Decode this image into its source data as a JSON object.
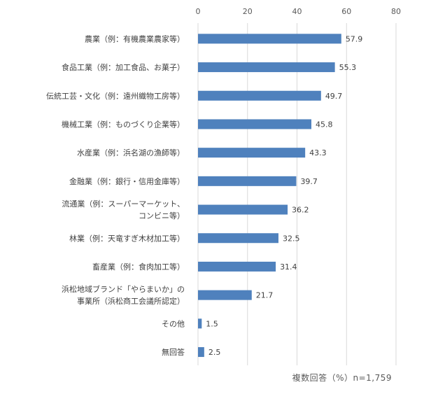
{
  "chart_data": {
    "type": "bar",
    "orientation": "horizontal",
    "categories": [
      [
        "農業（例：有機農業農家等）"
      ],
      [
        "食品工業（例：加工食品、お菓子）"
      ],
      [
        "伝統工芸・文化（例：遠州織物工房等）"
      ],
      [
        "機械工業（例：ものづくり企業等）"
      ],
      [
        "水産業（例：浜名湖の漁師等）"
      ],
      [
        "金融業（例：銀行・信用金庫等）"
      ],
      [
        "流通業（例：スーパーマーケット、",
        "コンビニ等）"
      ],
      [
        "林業（例：天竜すぎ木材加工等）"
      ],
      [
        "畜産業（例：食肉加工等）"
      ],
      [
        "浜松地域ブランド「やらまいか」の",
        "事業所（浜松商工会議所認定）"
      ],
      [
        "その他"
      ],
      [
        "無回答"
      ]
    ],
    "values": [
      57.9,
      55.3,
      49.7,
      45.8,
      43.3,
      39.7,
      36.2,
      32.5,
      31.4,
      21.7,
      1.5,
      2.5
    ],
    "value_labels": [
      "57.9",
      "55.3",
      "49.7",
      "45.8",
      "43.3",
      "39.7",
      "36.2",
      "32.5",
      "31.4",
      "21.7",
      "1.5",
      "2.5"
    ],
    "xlim": [
      0,
      80
    ],
    "xticks": [
      0,
      20,
      40,
      60,
      80
    ],
    "xtick_position": "top",
    "grid": true,
    "bar_color": "#4f81bd",
    "footnote": "複数回答（%）n=1,759"
  }
}
